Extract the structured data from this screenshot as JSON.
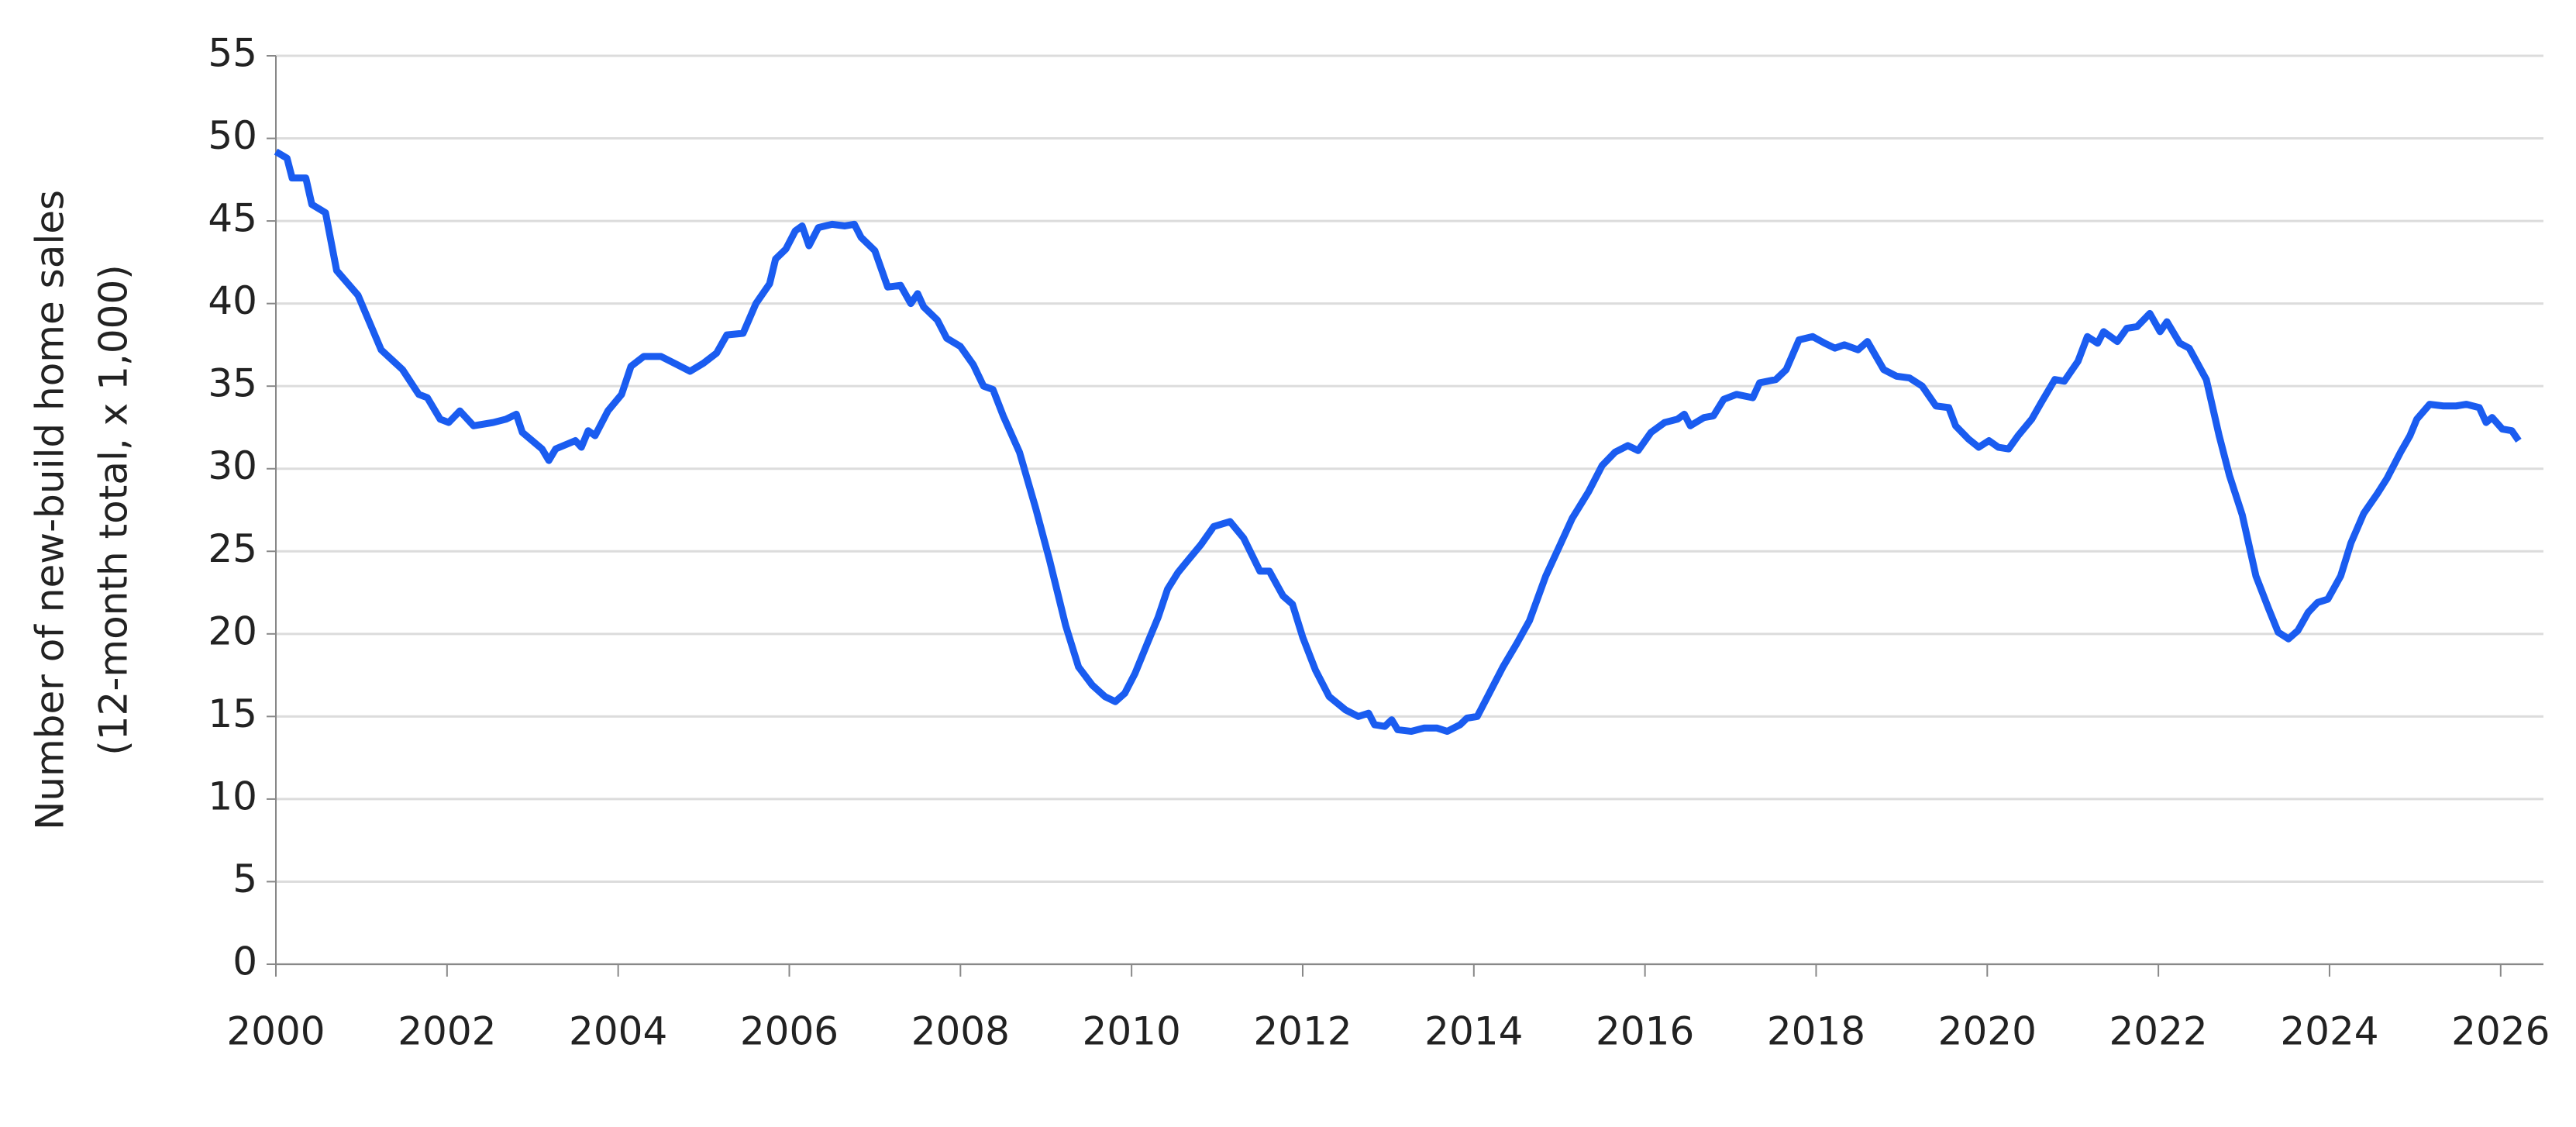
{
  "chart_data": {
    "type": "line",
    "ylabel": [
      "Number of new-build home sales",
      "(12-month total, x 1,000)"
    ],
    "xlim": [
      2000,
      2026.5
    ],
    "xticks": [
      2000,
      2002,
      2004,
      2006,
      2008,
      2010,
      2012,
      2014,
      2016,
      2018,
      2020,
      2022,
      2024,
      2026
    ],
    "ylim": [
      0,
      55
    ],
    "yticks": [
      0,
      5,
      10,
      15,
      20,
      25,
      30,
      35,
      40,
      45,
      50,
      55
    ],
    "grid": true,
    "series": [
      {
        "color": "#1a5cf0",
        "x": [
          2000.0,
          2000.13,
          2000.19,
          2000.35,
          2000.42,
          2000.58,
          2000.71,
          2000.96,
          2001.23,
          2001.48,
          2001.67,
          2001.77,
          2001.92,
          2002.02,
          2002.15,
          2002.31,
          2002.54,
          2002.69,
          2002.81,
          2002.88,
          2003.11,
          2003.19,
          2003.27,
          2003.5,
          2003.57,
          2003.65,
          2003.73,
          2003.88,
          2004.04,
          2004.15,
          2004.3,
          2004.5,
          2004.69,
          2004.84,
          2005.0,
          2005.15,
          2005.27,
          2005.46,
          2005.61,
          2005.77,
          2005.84,
          2005.96,
          2006.07,
          2006.15,
          2006.23,
          2006.34,
          2006.5,
          2006.65,
          2006.76,
          2006.84,
          2007.0,
          2007.15,
          2007.3,
          2007.42,
          2007.5,
          2007.57,
          2007.73,
          2007.84,
          2008.0,
          2008.15,
          2008.27,
          2008.38,
          2008.5,
          2008.69,
          2008.88,
          2009.04,
          2009.23,
          2009.38,
          2009.54,
          2009.69,
          2009.81,
          2009.92,
          2010.04,
          2010.19,
          2010.31,
          2010.42,
          2010.54,
          2010.65,
          2010.81,
          2010.96,
          2011.15,
          2011.31,
          2011.5,
          2011.61,
          2011.77,
          2011.88,
          2012.0,
          2012.15,
          2012.31,
          2012.5,
          2012.65,
          2012.77,
          2012.84,
          2012.96,
          2013.04,
          2013.11,
          2013.27,
          2013.42,
          2013.57,
          2013.69,
          2013.84,
          2013.92,
          2014.04,
          2014.19,
          2014.34,
          2014.5,
          2014.65,
          2014.84,
          2015.0,
          2015.15,
          2015.34,
          2015.5,
          2015.65,
          2015.8,
          2015.92,
          2016.07,
          2016.23,
          2016.38,
          2016.46,
          2016.53,
          2016.69,
          2016.8,
          2016.92,
          2017.07,
          2017.26,
          2017.34,
          2017.53,
          2017.65,
          2017.8,
          2017.96,
          2018.1,
          2018.22,
          2018.33,
          2018.49,
          2018.6,
          2018.79,
          2018.94,
          2019.09,
          2019.24,
          2019.4,
          2019.55,
          2019.63,
          2019.78,
          2019.9,
          2020.02,
          2020.13,
          2020.25,
          2020.36,
          2020.52,
          2020.63,
          2020.79,
          2020.9,
          2021.06,
          2021.17,
          2021.29,
          2021.36,
          2021.52,
          2021.63,
          2021.75,
          2021.9,
          2022.02,
          2022.1,
          2022.25,
          2022.36,
          2022.56,
          2022.71,
          2022.83,
          2022.98,
          2023.14,
          2023.29,
          2023.4,
          2023.52,
          2023.63,
          2023.75,
          2023.86,
          2023.98,
          2024.13,
          2024.25,
          2024.4,
          2024.56,
          2024.67,
          2024.83,
          2024.94,
          2025.02,
          2025.17,
          2025.33,
          2025.48,
          2025.6,
          2025.75,
          2025.83,
          2025.9,
          2026.02,
          2026.13,
          2026.21
        ],
        "values": [
          49.2,
          48.8,
          47.6,
          47.6,
          46,
          45.5,
          42,
          40.5,
          37.2,
          36,
          34.5,
          34.3,
          33,
          32.8,
          33.5,
          32.6,
          32.8,
          33,
          33.3,
          32.2,
          31.2,
          30.5,
          31.2,
          31.7,
          31.3,
          32.3,
          32,
          33.5,
          34.5,
          36.2,
          36.8,
          36.8,
          36.3,
          35.9,
          36.4,
          37,
          38.1,
          38.2,
          40,
          41.2,
          42.7,
          43.3,
          44.4,
          44.7,
          43.5,
          44.6,
          44.8,
          44.7,
          44.8,
          44,
          43.2,
          41,
          41.1,
          40,
          40.6,
          39.8,
          39,
          37.9,
          37.4,
          36.3,
          35,
          34.8,
          33.2,
          31,
          27.6,
          24.5,
          20.5,
          18,
          16.9,
          16.2,
          15.9,
          16.4,
          17.6,
          19.5,
          21,
          22.7,
          23.7,
          24.4,
          25.4,
          26.5,
          26.8,
          25.8,
          23.8,
          23.8,
          22.3,
          21.8,
          19.8,
          17.8,
          16.2,
          15.4,
          15,
          15.2,
          14.5,
          14.4,
          14.8,
          14.2,
          14.1,
          14.3,
          14.3,
          14.1,
          14.5,
          14.9,
          15,
          16.5,
          18,
          19.4,
          20.8,
          23.5,
          25.3,
          27,
          28.6,
          30.2,
          31,
          31.4,
          31.1,
          32.2,
          32.8,
          33,
          33.3,
          32.6,
          33.1,
          33.2,
          34.2,
          34.5,
          34.3,
          35.2,
          35.4,
          36,
          37.8,
          38,
          37.6,
          37.3,
          37.5,
          37.2,
          37.7,
          36,
          35.6,
          35.5,
          35,
          33.8,
          33.7,
          32.6,
          31.8,
          31.3,
          31.7,
          31.3,
          31.2,
          32,
          33,
          34,
          35.4,
          35.3,
          36.5,
          38,
          37.6,
          38.3,
          37.7,
          38.5,
          38.6,
          39.4,
          38.3,
          38.9,
          37.6,
          37.3,
          35.4,
          32,
          29.6,
          27.2,
          23.5,
          21.5,
          20.1,
          19.7,
          20.2,
          21.3,
          21.9,
          22.1,
          23.5,
          25.5,
          27.3,
          28.5,
          29.4,
          31,
          32,
          33,
          33.9,
          33.8,
          33.8,
          33.9,
          33.7,
          32.8,
          33.1,
          32.4,
          32.3,
          31.7
        ]
      }
    ]
  }
}
